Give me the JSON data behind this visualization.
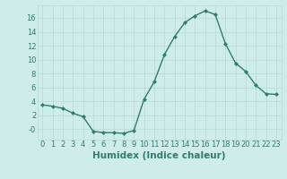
{
  "x": [
    0,
    1,
    2,
    3,
    4,
    5,
    6,
    7,
    8,
    9,
    10,
    11,
    12,
    13,
    14,
    15,
    16,
    17,
    18,
    19,
    20,
    21,
    22,
    23
  ],
  "y": [
    3.5,
    3.3,
    3.0,
    2.3,
    1.8,
    -0.3,
    -0.5,
    -0.5,
    -0.6,
    -0.2,
    4.3,
    6.8,
    10.7,
    13.3,
    15.3,
    16.3,
    17.0,
    16.5,
    12.3,
    9.5,
    8.3,
    6.3,
    5.1,
    5.0
  ],
  "line_color": "#2e7d6e",
  "marker": "D",
  "marker_size": 2.0,
  "line_width": 1.0,
  "bg_color": "#ceecea",
  "grid_color": "#b8d8d4",
  "tick_color": "#2e7d6e",
  "xlabel": "Humidex (Indice chaleur)",
  "xlabel_fontsize": 7.5,
  "xlabel_color": "#2e7d6e",
  "yticks": [
    0,
    2,
    4,
    6,
    8,
    10,
    12,
    14,
    16
  ],
  "ytick_labels": [
    "-0",
    "2",
    "4",
    "6",
    "8",
    "10",
    "12",
    "14",
    "16"
  ],
  "ylim": [
    -1.5,
    17.8
  ],
  "xlim": [
    -0.5,
    23.5
  ],
  "tick_fontsize": 6.0
}
